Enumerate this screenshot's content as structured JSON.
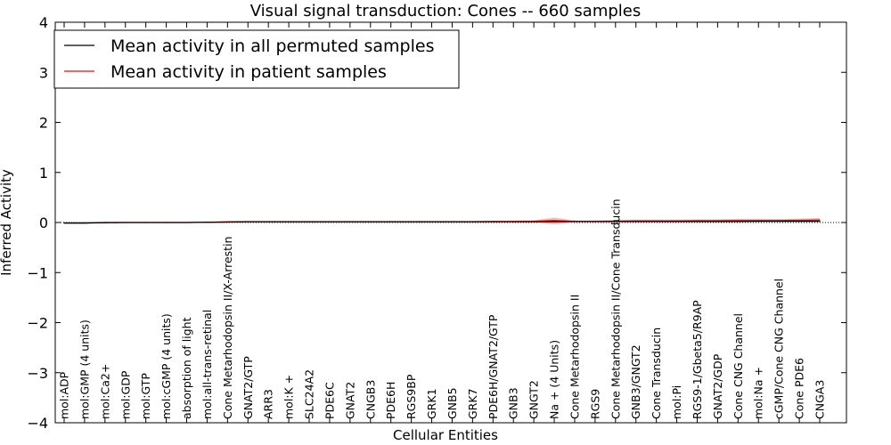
{
  "chart_data": {
    "type": "line",
    "title": "Visual signal transduction: Cones -- 660 samples",
    "xlabel": "Cellular Entities",
    "ylabel": "Inferred Activity",
    "ylim": [
      -4,
      4
    ],
    "yticks": [
      -4,
      -3,
      -2,
      -1,
      0,
      1,
      2,
      3,
      4
    ],
    "ytick_labels": [
      "−4",
      "−3",
      "−2",
      "−1",
      "0",
      "1",
      "2",
      "3",
      "4"
    ],
    "grid": false,
    "legend_position": "top-left",
    "categories": [
      "mol:ADP",
      "mol:GMP (4 units)",
      "mol:Ca2+",
      "mol:GDP",
      "mol:GTP",
      "mol:cGMP (4 units)",
      "absorption of light",
      "mol:all-trans-retinal",
      "Cone Metarhodopsin II/X-Arrestin",
      "GNAT2/GTP",
      "ARR3",
      "mol:K +",
      "SLC24A2",
      "PDE6C",
      "GNAT2",
      "CNGB3",
      "PDE6H",
      "RGS9BP",
      "GRK1",
      "GNB5",
      "GRK7",
      "PDE6H/GNAT2/GTP",
      "GNB3",
      "GNGT2",
      "Na + (4 Units)",
      "Cone Metarhodopsin II",
      "RGS9",
      "Cone Metarhodopsin II/Cone Transducin",
      "GNB3/GNGT2",
      "Cone Transducin",
      "mol:Pi",
      "RGS9-1/Gbeta5/R9AP",
      "GNAT2/GDP",
      "Cone CNG Channel",
      "mol:Na +",
      "cGMP/Cone CNG Channel",
      "Cone PDE6",
      "CNGA3"
    ],
    "series": [
      {
        "name": "Mean activity in all permuted samples",
        "color": "#000000",
        "values": [
          -0.01,
          -0.01,
          -0.005,
          0.0,
          0.0,
          0.0,
          0.0,
          0.005,
          0.01,
          0.015,
          0.015,
          0.015,
          0.015,
          0.015,
          0.015,
          0.015,
          0.015,
          0.015,
          0.015,
          0.015,
          0.015,
          0.015,
          0.015,
          0.015,
          0.015,
          0.02,
          0.02,
          0.02,
          0.02,
          0.02,
          0.02,
          0.02,
          0.02,
          0.02,
          0.025,
          0.025,
          0.025,
          0.025
        ]
      },
      {
        "name": "Mean activity in patient samples",
        "color": "#ff0000",
        "band_color": "#ffb3b3",
        "values": [
          -0.01,
          -0.01,
          0.0,
          0.0,
          0.0,
          0.0,
          0.0,
          0.005,
          0.01,
          0.015,
          0.015,
          0.015,
          0.015,
          0.015,
          0.015,
          0.015,
          0.015,
          0.015,
          0.015,
          0.015,
          0.015,
          0.02,
          0.02,
          0.025,
          0.04,
          0.02,
          0.02,
          0.025,
          0.03,
          0.03,
          0.03,
          0.035,
          0.035,
          0.04,
          0.04,
          0.04,
          0.045,
          0.05
        ],
        "band_low": [
          -0.02,
          -0.02,
          -0.015,
          -0.005,
          -0.005,
          -0.005,
          -0.005,
          -0.005,
          0.0,
          0.005,
          0.005,
          0.005,
          0.005,
          0.005,
          0.005,
          0.005,
          0.005,
          0.005,
          0.005,
          0.005,
          0.005,
          0.005,
          0.005,
          0.005,
          -0.04,
          0.005,
          0.005,
          0.0,
          0.005,
          0.005,
          0.005,
          0.005,
          0.005,
          0.005,
          0.005,
          0.005,
          0.01,
          0.01
        ],
        "band_high": [
          0.0,
          0.005,
          0.015,
          0.01,
          0.01,
          0.01,
          0.01,
          0.015,
          0.025,
          0.03,
          0.03,
          0.03,
          0.03,
          0.03,
          0.03,
          0.03,
          0.03,
          0.03,
          0.03,
          0.03,
          0.03,
          0.035,
          0.04,
          0.045,
          0.1,
          0.04,
          0.04,
          0.055,
          0.06,
          0.06,
          0.06,
          0.065,
          0.065,
          0.075,
          0.075,
          0.07,
          0.08,
          0.09
        ]
      }
    ],
    "baseline": {
      "value": 0,
      "style": "dotted"
    }
  }
}
